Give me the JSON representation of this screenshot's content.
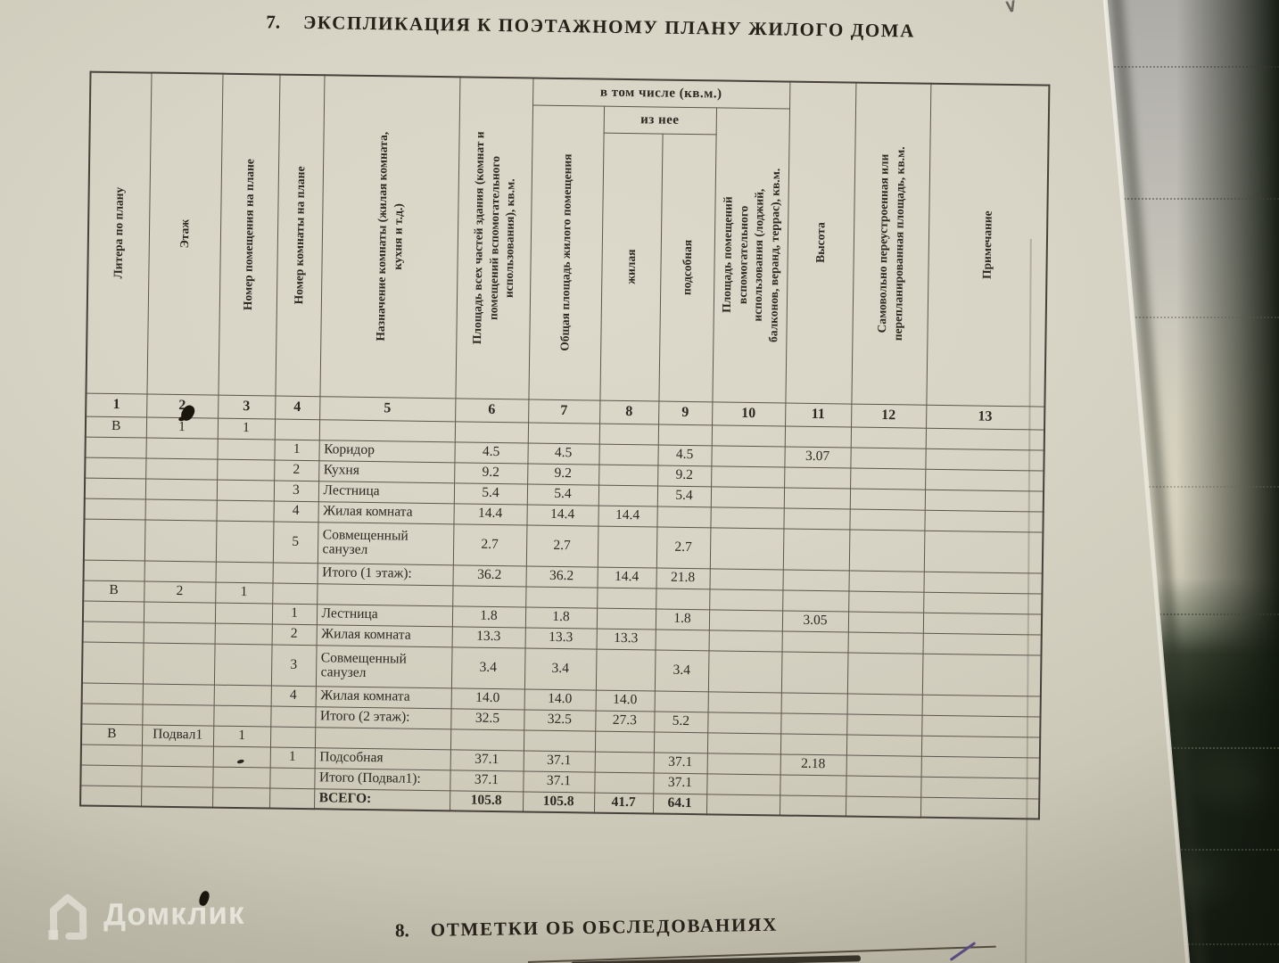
{
  "palette": {
    "paper": "#d7d3c5",
    "table_line": "#5b564c",
    "ink_text": "#2d2922",
    "fabric_dark": "#1b2318",
    "pen_mark": "#5d4f8c"
  },
  "section7": {
    "number": "7.",
    "title": "ЭКСПЛИКАЦИЯ К ПОЭТАЖНОМУ ПЛАНУ ЖИЛОГО ДОМА"
  },
  "section8": {
    "number": "8.",
    "title": "ОТМЕТКИ ОБ ОБСЛЕДОВАНИЯХ"
  },
  "watermark": {
    "label": "Домклик"
  },
  "table": {
    "headers": {
      "col1": "Литера по плану",
      "col2": "Этаж",
      "col3": "Номер помещения на плане",
      "col4": "Номер комнаты на плане",
      "col5": "Назначение комнаты (жилая комната,\nкухня и т.д.)",
      "col6": "Площадь всех частей здания (комнат и\nпомещений вспомогательного\nиспользования), кв.м.",
      "col7": "Общая площадь жилого помещения",
      "group_incl": "в том числе (кв.м.)",
      "group_iznee": "из нее",
      "col8": "жилая",
      "col9": "подсобная",
      "col10": "Площадь помещений\nвспомогательного\nиспользования (лоджий,\nбалконов, веранд, террас), кв.м.",
      "col11": "Высота",
      "col12": "Самовольно переустроенная или\nперепланированная площадь, кв.м.",
      "col13": "Примечание"
    },
    "col_numbers": [
      "1",
      "2",
      "3",
      "4",
      "5",
      "6",
      "7",
      "8",
      "9",
      "10",
      "11",
      "12",
      "13"
    ],
    "rows": [
      {
        "name": "section-row-floor-1",
        "cells": [
          "В",
          "1",
          "1",
          "",
          "",
          "",
          "",
          "",
          "",
          "",
          "",
          "",
          ""
        ]
      },
      {
        "name": "room-row",
        "cells": [
          "",
          "",
          "",
          "1",
          "Коридор",
          "4.5",
          "4.5",
          "",
          "4.5",
          "",
          "3.07",
          "",
          ""
        ]
      },
      {
        "name": "room-row",
        "cells": [
          "",
          "",
          "",
          "2",
          "Кухня",
          "9.2",
          "9.2",
          "",
          "9.2",
          "",
          "",
          "",
          ""
        ]
      },
      {
        "name": "room-row",
        "cells": [
          "",
          "",
          "",
          "3",
          "Лестница",
          "5.4",
          "5.4",
          "",
          "5.4",
          "",
          "",
          "",
          ""
        ]
      },
      {
        "name": "room-row",
        "cells": [
          "",
          "",
          "",
          "4",
          "Жилая комната",
          "14.4",
          "14.4",
          "14.4",
          "",
          "",
          "",
          "",
          ""
        ]
      },
      {
        "name": "room-row",
        "tall": true,
        "cells": [
          "",
          "",
          "",
          "5",
          "Совмещенный санузел",
          "2.7",
          "2.7",
          "",
          "2.7",
          "",
          "",
          "",
          ""
        ]
      },
      {
        "name": "subtotal-row-floor-1",
        "cells": [
          "",
          "",
          "",
          "",
          "Итого (1 этаж):",
          "36.2",
          "36.2",
          "14.4",
          "21.8",
          "",
          "",
          "",
          ""
        ]
      },
      {
        "name": "section-row-floor-2",
        "cells": [
          "В",
          "2",
          "1",
          "",
          "",
          "",
          "",
          "",
          "",
          "",
          "",
          "",
          ""
        ]
      },
      {
        "name": "room-row",
        "cells": [
          "",
          "",
          "",
          "1",
          "Лестница",
          "1.8",
          "1.8",
          "",
          "1.8",
          "",
          "3.05",
          "",
          ""
        ]
      },
      {
        "name": "room-row",
        "cells": [
          "",
          "",
          "",
          "2",
          "Жилая комната",
          "13.3",
          "13.3",
          "13.3",
          "",
          "",
          "",
          "",
          ""
        ]
      },
      {
        "name": "room-row",
        "tall": true,
        "cells": [
          "",
          "",
          "",
          "3",
          "Совмещенный санузел",
          "3.4",
          "3.4",
          "",
          "3.4",
          "",
          "",
          "",
          ""
        ]
      },
      {
        "name": "room-row",
        "cells": [
          "",
          "",
          "",
          "4",
          "Жилая комната",
          "14.0",
          "14.0",
          "14.0",
          "",
          "",
          "",
          "",
          ""
        ]
      },
      {
        "name": "subtotal-row-floor-2",
        "cells": [
          "",
          "",
          "",
          "",
          "Итого (2 этаж):",
          "32.5",
          "32.5",
          "27.3",
          "5.2",
          "",
          "",
          "",
          ""
        ]
      },
      {
        "name": "section-row-basement",
        "cells": [
          "В",
          "Подвал1",
          "1",
          "",
          "",
          "",
          "",
          "",
          "",
          "",
          "",
          "",
          ""
        ]
      },
      {
        "name": "room-row",
        "cells": [
          "",
          "",
          "",
          "1",
          "Подсобная",
          "37.1",
          "37.1",
          "",
          "37.1",
          "",
          "2.18",
          "",
          ""
        ]
      },
      {
        "name": "subtotal-row-basement",
        "cells": [
          "",
          "",
          "",
          "",
          "Итого (Подвал1):",
          "37.1",
          "37.1",
          "",
          "37.1",
          "",
          "",
          "",
          ""
        ]
      },
      {
        "name": "total-row",
        "bold": true,
        "cells": [
          "",
          "",
          "",
          "",
          "ВСЕГО:",
          "105.8",
          "105.8",
          "41.7",
          "64.1",
          "",
          "",
          "",
          ""
        ]
      }
    ]
  }
}
